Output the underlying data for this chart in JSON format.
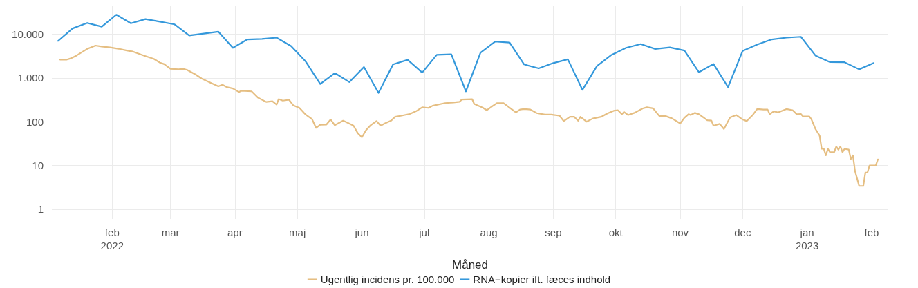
{
  "chart_data": {
    "type": "line",
    "xlabel": "Måned",
    "log": "y",
    "grid": true,
    "legend": "bottom",
    "marker": "none",
    "line_style": "solid",
    "xlim": [
      "2022-01-03",
      "2023-02-09"
    ],
    "xticks": [
      {
        "value": "2022-02-01",
        "label": "feb\n2022"
      },
      {
        "value": "2022-03-01",
        "label": "mar"
      },
      {
        "value": "2022-04-01",
        "label": "apr"
      },
      {
        "value": "2022-05-01",
        "label": "maj"
      },
      {
        "value": "2022-06-01",
        "label": "jun"
      },
      {
        "value": "2022-07-01",
        "label": "jul"
      },
      {
        "value": "2022-08-01",
        "label": "aug"
      },
      {
        "value": "2022-09-01",
        "label": "sep"
      },
      {
        "value": "2022-10-01",
        "label": "okt"
      },
      {
        "value": "2022-11-01",
        "label": "nov"
      },
      {
        "value": "2022-12-01",
        "label": "dec"
      },
      {
        "value": "2023-01-01",
        "label": "jan\n2023"
      },
      {
        "value": "2023-02-01",
        "label": "feb"
      }
    ],
    "ylim": [
      0.6,
      45000
    ],
    "yticks": [
      1,
      10,
      100,
      {
        "value": 1000,
        "label": "1.000"
      },
      {
        "value": 10000,
        "label": "10.000"
      }
    ],
    "series": [
      {
        "name": "Ugentlig incidens pr. 100.000",
        "color": "#e5be82",
        "x": [
          "2022-01-07",
          "2022-01-10",
          "2022-01-12",
          "2022-01-15",
          "2022-01-17",
          "2022-01-20",
          "2022-01-24",
          "2022-01-27",
          "2022-01-31",
          "2022-02-04",
          "2022-02-08",
          "2022-02-11",
          "2022-02-16",
          "2022-02-21",
          "2022-02-24",
          "2022-02-26",
          "2022-03-01",
          "2022-03-05",
          "2022-03-07",
          "2022-03-09",
          "2022-03-13",
          "2022-03-16",
          "2022-03-20",
          "2022-03-24",
          "2022-03-26",
          "2022-03-28",
          "2022-03-31",
          "2022-04-03",
          "2022-04-04",
          "2022-04-09",
          "2022-04-12",
          "2022-04-16",
          "2022-04-19",
          "2022-04-21",
          "2022-04-22",
          "2022-04-24",
          "2022-04-27",
          "2022-04-29",
          "2022-05-02",
          "2022-05-05",
          "2022-05-08",
          "2022-05-10",
          "2022-05-12",
          "2022-05-15",
          "2022-05-17",
          "2022-05-19",
          "2022-05-23",
          "2022-05-25",
          "2022-05-28",
          "2022-05-30",
          "2022-06-01",
          "2022-06-03",
          "2022-06-05",
          "2022-06-08",
          "2022-06-10",
          "2022-06-12",
          "2022-06-15",
          "2022-06-17",
          "2022-06-20",
          "2022-06-24",
          "2022-06-27",
          "2022-06-30",
          "2022-07-03",
          "2022-07-05",
          "2022-07-11",
          "2022-07-15",
          "2022-07-18",
          "2022-07-19",
          "2022-07-24",
          "2022-07-25",
          "2022-07-29",
          "2022-07-31",
          "2022-08-03",
          "2022-08-05",
          "2022-08-08",
          "2022-08-10",
          "2022-08-14",
          "2022-08-16",
          "2022-08-18",
          "2022-08-21",
          "2022-08-24",
          "2022-08-28",
          "2022-08-31",
          "2022-09-04",
          "2022-09-06",
          "2022-09-09",
          "2022-09-11",
          "2022-09-13",
          "2022-09-14",
          "2022-09-17",
          "2022-09-20",
          "2022-09-24",
          "2022-09-27",
          "2022-09-30",
          "2022-10-02",
          "2022-10-04",
          "2022-10-05",
          "2022-10-07",
          "2022-10-10",
          "2022-10-14",
          "2022-10-16",
          "2022-10-19",
          "2022-10-22",
          "2022-10-25",
          "2022-10-28",
          "2022-11-01",
          "2022-11-03",
          "2022-11-05",
          "2022-11-06",
          "2022-11-08",
          "2022-11-10",
          "2022-11-14",
          "2022-11-16",
          "2022-11-17",
          "2022-11-20",
          "2022-11-22",
          "2022-11-25",
          "2022-11-28",
          "2022-12-01",
          "2022-12-03",
          "2022-12-06",
          "2022-12-08",
          "2022-12-11",
          "2022-12-13",
          "2022-12-14",
          "2022-12-16",
          "2022-12-18",
          "2022-12-22",
          "2022-12-25",
          "2022-12-27",
          "2022-12-29",
          "2022-12-30",
          "2023-01-02",
          "2023-01-03",
          "2023-01-05",
          "2023-01-07",
          "2023-01-08",
          "2023-01-09",
          "2023-01-10",
          "2023-01-11",
          "2023-01-12",
          "2023-01-14",
          "2023-01-15",
          "2023-01-16",
          "2023-01-17",
          "2023-01-18",
          "2023-01-19",
          "2023-01-21",
          "2023-01-22",
          "2023-01-23",
          "2023-01-24",
          "2023-01-26",
          "2023-01-28",
          "2023-01-29",
          "2023-01-30",
          "2023-01-31",
          "2023-02-03",
          "2023-02-04"
        ],
        "values": [
          2600,
          2600,
          2780,
          3270,
          3760,
          4590,
          5470,
          5210,
          4980,
          4640,
          4230,
          3990,
          3270,
          2720,
          2230,
          2060,
          1610,
          1570,
          1610,
          1520,
          1200,
          966,
          783,
          642,
          698,
          620,
          573,
          476,
          510,
          493,
          355,
          282,
          292,
          245,
          327,
          302,
          316,
          237,
          206,
          145,
          115,
          72,
          85,
          86,
          112,
          83,
          105,
          95,
          81,
          55,
          44,
          64,
          81,
          103,
          81,
          91,
          105,
          129,
          137,
          150,
          173,
          213,
          206,
          231,
          266,
          275,
          285,
          320,
          327,
          254,
          210,
          183,
          231,
          266,
          266,
          226,
          163,
          189,
          194,
          189,
          157,
          145,
          145,
          137,
          103,
          129,
          129,
          105,
          129,
          100,
          118,
          129,
          154,
          177,
          183,
          148,
          167,
          142,
          159,
          201,
          213,
          201,
          134,
          134,
          119,
          91,
          122,
          148,
          142,
          159,
          148,
          108,
          106,
          81,
          89,
          68,
          125,
          142,
          112,
          103,
          145,
          194,
          189,
          189,
          148,
          173,
          163,
          194,
          183,
          148,
          150,
          132,
          132,
          115,
          68,
          48,
          24,
          24,
          17,
          24,
          20,
          20,
          27,
          23,
          27,
          20,
          24,
          23,
          14,
          17,
          7.5,
          3.4,
          3.4,
          6.9,
          6.9,
          10,
          10,
          13.7
        ]
      },
      {
        "name": "RNA−kopier ift. fæces indhold",
        "color": "#3498db",
        "x": [
          "2022-01-06",
          "2022-01-13",
          "2022-01-20",
          "2022-01-27",
          "2022-02-03",
          "2022-02-10",
          "2022-02-17",
          "2022-02-24",
          "2022-03-03",
          "2022-03-10",
          "2022-03-17",
          "2022-03-24",
          "2022-03-31",
          "2022-04-07",
          "2022-04-14",
          "2022-04-21",
          "2022-04-28",
          "2022-05-05",
          "2022-05-12",
          "2022-05-19",
          "2022-05-26",
          "2022-06-02",
          "2022-06-09",
          "2022-06-16",
          "2022-06-23",
          "2022-06-30",
          "2022-07-07",
          "2022-07-14",
          "2022-07-21",
          "2022-07-28",
          "2022-08-04",
          "2022-08-11",
          "2022-08-18",
          "2022-08-25",
          "2022-09-01",
          "2022-09-08",
          "2022-09-15",
          "2022-09-22",
          "2022-09-29",
          "2022-10-06",
          "2022-10-13",
          "2022-10-20",
          "2022-10-27",
          "2022-11-03",
          "2022-11-10",
          "2022-11-17",
          "2022-11-24",
          "2022-12-01",
          "2022-12-08",
          "2022-12-15",
          "2022-12-22",
          "2022-12-29",
          "2023-01-05",
          "2023-01-12",
          "2023-01-19",
          "2023-01-26",
          "2023-02-02"
        ],
        "values": [
          7000,
          13500,
          18000,
          14800,
          27800,
          17700,
          22100,
          19200,
          16700,
          9330,
          10300,
          11400,
          4860,
          7570,
          7750,
          8310,
          5340,
          2370,
          723,
          1290,
          803,
          1770,
          453,
          2030,
          2590,
          1320,
          3360,
          3470,
          493,
          3760,
          6740,
          6420,
          2030,
          1650,
          2180,
          2660,
          534,
          1870,
          3360,
          4860,
          5930,
          4590,
          4980,
          4230,
          1350,
          2080,
          614,
          4140,
          5780,
          7570,
          8310,
          8690,
          3240,
          2290,
          2270,
          1570,
          2180
        ]
      }
    ]
  }
}
